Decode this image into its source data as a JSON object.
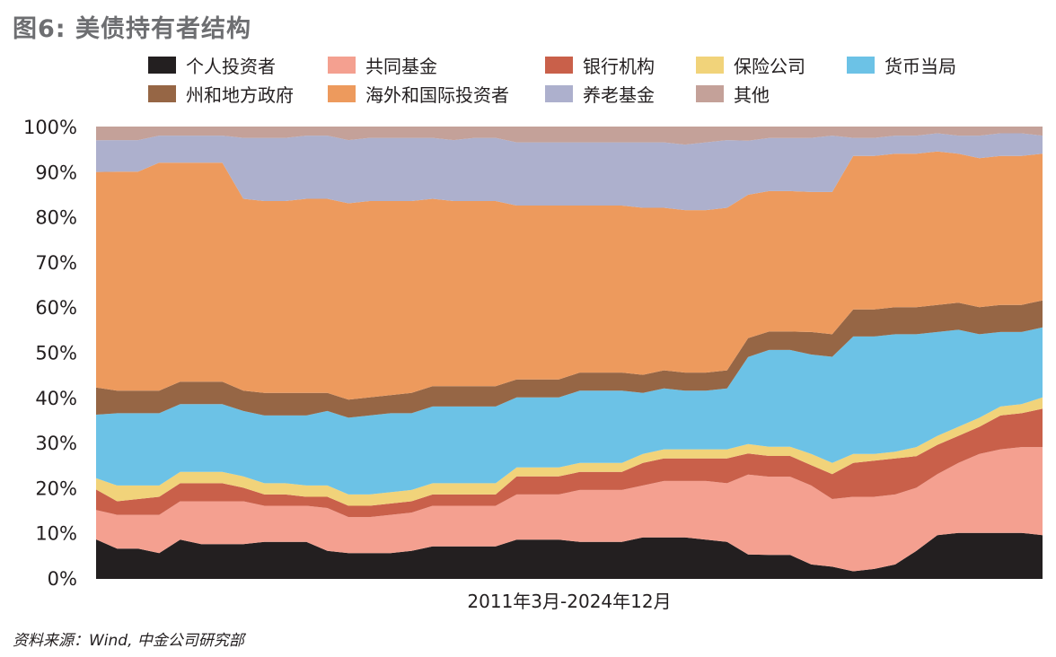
{
  "title": "图6: 美债持有者结构",
  "source": "资料来源：Wind, 中金公司研究部",
  "chart_data": {
    "type": "area",
    "stacked": true,
    "xlabel": "2011年3月-2024年12月",
    "ylabel": "",
    "ylim": [
      0,
      100
    ],
    "yticks": [
      "0%",
      "10%",
      "20%",
      "30%",
      "40%",
      "50%",
      "60%",
      "70%",
      "80%",
      "90%",
      "100%"
    ],
    "grid": false,
    "legend_position": "top",
    "series": [
      {
        "name": "个人投资者",
        "color": "#231f20",
        "values": [
          8.5,
          6.5,
          6.5,
          5.5,
          8.5,
          7.5,
          7.5,
          7.5,
          8,
          8,
          8,
          6,
          5.5,
          5.5,
          5.5,
          6,
          7,
          7,
          7,
          7,
          8.5,
          8.5,
          8.5,
          8,
          8,
          8,
          9,
          9,
          9,
          8.5,
          8,
          5,
          5,
          5,
          3,
          2.5,
          1.5,
          2,
          3,
          6,
          9.5,
          10,
          10,
          10,
          10,
          9.5
        ]
      },
      {
        "name": "共同基金",
        "color": "#f4a090",
        "values": [
          6.5,
          7.5,
          7.5,
          8.5,
          8.5,
          9.5,
          9.5,
          9.5,
          8,
          8,
          8,
          9.5,
          8,
          8,
          8.5,
          8.5,
          9,
          9,
          9,
          9,
          10,
          10,
          10,
          11.5,
          11.5,
          11.5,
          11.5,
          12.5,
          12.5,
          13,
          13,
          17,
          17,
          17,
          17.5,
          15,
          16.5,
          16,
          15.5,
          14,
          13.5,
          15.5,
          17.5,
          18.5,
          19,
          19.5
        ]
      },
      {
        "name": "银行机构",
        "color": "#c9604a",
        "values": [
          4.5,
          3,
          3.5,
          4,
          4,
          4,
          4,
          3,
          2.5,
          2.5,
          2,
          2.5,
          2.5,
          2.5,
          2.5,
          2.5,
          2.5,
          2.5,
          2.5,
          2.5,
          4,
          4,
          4,
          4,
          4,
          4,
          5,
          5,
          5,
          5,
          5.5,
          4.5,
          4.5,
          4.5,
          4.5,
          5.5,
          7.5,
          8,
          8,
          7,
          6.5,
          6,
          6,
          7.5,
          7.5,
          8.5
        ]
      },
      {
        "name": "保险公司",
        "color": "#f1d37a",
        "values": [
          2.5,
          3.5,
          3,
          2.5,
          2.5,
          2.5,
          2.5,
          2.5,
          2.5,
          2.5,
          2.5,
          2.5,
          2.5,
          2.5,
          2.5,
          2.5,
          2.5,
          2.5,
          2.5,
          2.5,
          2,
          2,
          2,
          2,
          2,
          2,
          2,
          2,
          2,
          2,
          2,
          2,
          2,
          2,
          2.5,
          2.5,
          2,
          1.5,
          1.5,
          2,
          2,
          2,
          2,
          2,
          2,
          2.5
        ]
      },
      {
        "name": "货币当局",
        "color": "#6cc2e6",
        "values": [
          14,
          16,
          16,
          16,
          15,
          15,
          15,
          14.5,
          15,
          15,
          15.5,
          16.5,
          17,
          17.5,
          17.5,
          17,
          17,
          17,
          17,
          17,
          15.5,
          15.5,
          15.5,
          16,
          16,
          16,
          13.5,
          13.5,
          13,
          13,
          13.5,
          18.5,
          21,
          21,
          22,
          23.5,
          26,
          26,
          26,
          25,
          23,
          21.5,
          18.5,
          16.5,
          16,
          15.5
        ]
      },
      {
        "name": "州和地方政府",
        "color": "#966645",
        "values": [
          6,
          5,
          5,
          5,
          5,
          5,
          5,
          4.5,
          5,
          5,
          5,
          4,
          4,
          4,
          4,
          4.5,
          4.5,
          4.5,
          4.5,
          4.5,
          4,
          4,
          4,
          4,
          4,
          4,
          4,
          4,
          4,
          4,
          4,
          4,
          4,
          4,
          5,
          5,
          6,
          6,
          6,
          6,
          6,
          6,
          6,
          6,
          6,
          6
        ]
      },
      {
        "name": "海外和国际投资者",
        "color": "#ed9a5d",
        "values": [
          47.5,
          48.5,
          48.5,
          50.5,
          48.5,
          48.5,
          48.5,
          42.5,
          42.5,
          42.5,
          43,
          43,
          43.5,
          43.5,
          43,
          42.5,
          41.5,
          41,
          41,
          41,
          38.5,
          38.5,
          38.5,
          37,
          37,
          37,
          37,
          36,
          36,
          36,
          36,
          30.5,
          30.5,
          30.5,
          31,
          31.5,
          34,
          34,
          34,
          34,
          34,
          33,
          33,
          33,
          33,
          32.5
        ]
      },
      {
        "name": "养老基金",
        "color": "#adb0cd",
        "values": [
          7,
          7,
          7,
          6,
          6,
          6,
          6,
          13.5,
          14,
          14,
          14,
          14,
          14,
          14,
          14,
          14,
          13.5,
          13.5,
          14,
          14,
          14,
          14,
          14,
          14,
          14,
          14,
          14.5,
          14.5,
          14.5,
          15,
          15,
          11.5,
          11.5,
          11.5,
          12,
          12.5,
          4,
          4,
          4,
          4,
          4,
          4,
          5,
          5,
          5,
          4
        ]
      },
      {
        "name": "其他",
        "color": "#c4a199",
        "values": [
          3,
          3,
          3,
          2,
          2,
          2,
          2,
          2.5,
          2.5,
          2.5,
          2,
          2,
          3,
          2.5,
          2.5,
          2.5,
          2.5,
          3,
          2.5,
          2.5,
          3.5,
          3.5,
          3.5,
          3.5,
          3.5,
          3.5,
          3.5,
          3.5,
          4,
          3.5,
          3,
          3,
          2.5,
          2.5,
          2.5,
          2,
          2.5,
          2.5,
          2,
          2,
          1.5,
          2,
          2,
          1.5,
          1.5,
          2
        ]
      }
    ]
  }
}
